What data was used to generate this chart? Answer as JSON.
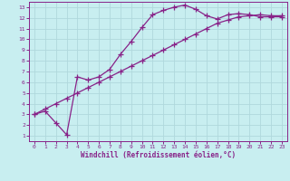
{
  "xlabel": "Windchill (Refroidissement éolien,°C)",
  "background_color": "#c8eef0",
  "grid_color": "#b0d8dc",
  "line_color": "#882288",
  "line1_x": [
    0,
    1,
    2,
    3,
    4,
    5,
    6,
    7,
    8,
    9,
    10,
    11,
    12,
    13,
    14,
    15,
    16,
    17,
    18,
    19,
    20,
    21,
    22,
    23
  ],
  "line1_y": [
    3.0,
    3.3,
    2.2,
    1.1,
    6.5,
    6.2,
    6.5,
    7.2,
    8.6,
    9.8,
    11.1,
    12.3,
    12.7,
    13.0,
    13.2,
    12.8,
    12.2,
    11.9,
    12.3,
    12.4,
    12.3,
    12.1,
    12.1,
    12.1
  ],
  "line2_x": [
    0,
    1,
    2,
    3,
    4,
    5,
    6,
    7,
    8,
    9,
    10,
    11,
    12,
    13,
    14,
    15,
    16,
    17,
    18,
    19,
    20,
    21,
    22,
    23
  ],
  "line2_y": [
    3.0,
    3.5,
    4.0,
    4.5,
    5.0,
    5.5,
    6.0,
    6.5,
    7.0,
    7.5,
    8.0,
    8.5,
    9.0,
    9.5,
    10.0,
    10.5,
    11.0,
    11.5,
    11.8,
    12.1,
    12.2,
    12.3,
    12.2,
    12.2
  ],
  "xlim": [
    -0.5,
    23.5
  ],
  "ylim": [
    0.5,
    13.5
  ],
  "yticks": [
    1,
    2,
    3,
    4,
    5,
    6,
    7,
    8,
    9,
    10,
    11,
    12,
    13
  ],
  "xticks": [
    0,
    1,
    2,
    3,
    4,
    5,
    6,
    7,
    8,
    9,
    10,
    11,
    12,
    13,
    14,
    15,
    16,
    17,
    18,
    19,
    20,
    21,
    22,
    23
  ],
  "marker": "+",
  "markersize": 4,
  "linewidth": 0.9
}
